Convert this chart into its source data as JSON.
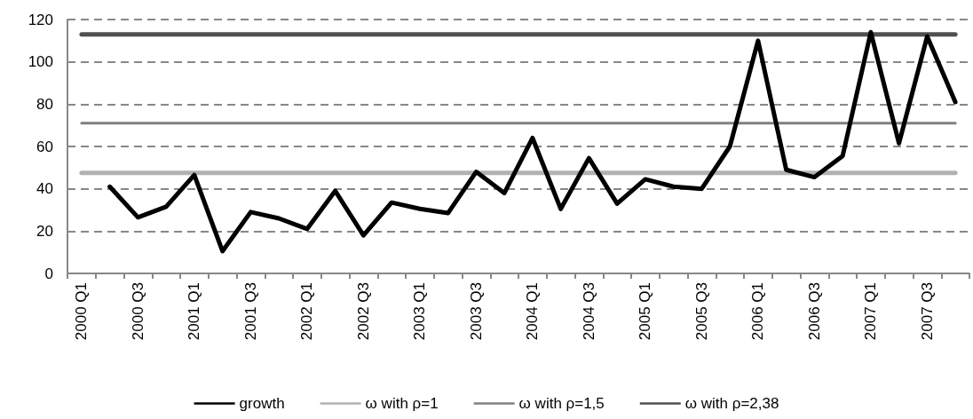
{
  "chart_data": {
    "type": "line",
    "categories": [
      "2000 Q1",
      null,
      "2000 Q3",
      null,
      "2001 Q1",
      null,
      "2001 Q3",
      null,
      "2002 Q1",
      null,
      "2002 Q3",
      null,
      "2003 Q1",
      null,
      "2003 Q3",
      null,
      "2004 Q1",
      null,
      "2004 Q3",
      null,
      "2005 Q1",
      null,
      "2005 Q3",
      null,
      "2006 Q1",
      null,
      "2006 Q3",
      null,
      "2007 Q1",
      null,
      "2007 Q3",
      null
    ],
    "series": [
      {
        "name": "growth",
        "color": "#000000",
        "values": [
          null,
          41,
          26.5,
          31.5,
          46.5,
          10.5,
          29,
          26,
          21,
          39,
          18,
          33.5,
          30.5,
          28.5,
          48,
          38,
          64,
          30.5,
          54.5,
          33,
          44.5,
          41,
          40,
          60,
          110,
          49,
          45.5,
          55.5,
          114,
          61.5,
          112,
          81
        ]
      },
      {
        "name": "ω with ρ=1",
        "color": "#b2b2b2",
        "values": [
          47.5,
          47.5,
          47.5,
          47.5,
          47.5,
          47.5,
          47.5,
          47.5,
          47.5,
          47.5,
          47.5,
          47.5,
          47.5,
          47.5,
          47.5,
          47.5,
          47.5,
          47.5,
          47.5,
          47.5,
          47.5,
          47.5,
          47.5,
          47.5,
          47.5,
          47.5,
          47.5,
          47.5,
          47.5,
          47.5,
          47.5,
          47.5
        ]
      },
      {
        "name": "ω with ρ=1,5",
        "color": "#808080",
        "values": [
          71,
          71,
          71,
          71,
          71,
          71,
          71,
          71,
          71,
          71,
          71,
          71,
          71,
          71,
          71,
          71,
          71,
          71,
          71,
          71,
          71,
          71,
          71,
          71,
          71,
          71,
          71,
          71,
          71,
          71,
          71,
          71
        ]
      },
      {
        "name": "ω with ρ=2,38",
        "color": "#505050",
        "values": [
          113,
          113,
          113,
          113,
          113,
          113,
          113,
          113,
          113,
          113,
          113,
          113,
          113,
          113,
          113,
          113,
          113,
          113,
          113,
          113,
          113,
          113,
          113,
          113,
          113,
          113,
          113,
          113,
          113,
          113,
          113,
          113
        ]
      }
    ],
    "ylim": [
      0,
      120
    ],
    "yticks": [
      0,
      20,
      40,
      60,
      80,
      100,
      120
    ],
    "grid": "y",
    "legend": "bottom",
    "marker": "none",
    "line_style": "solid"
  }
}
